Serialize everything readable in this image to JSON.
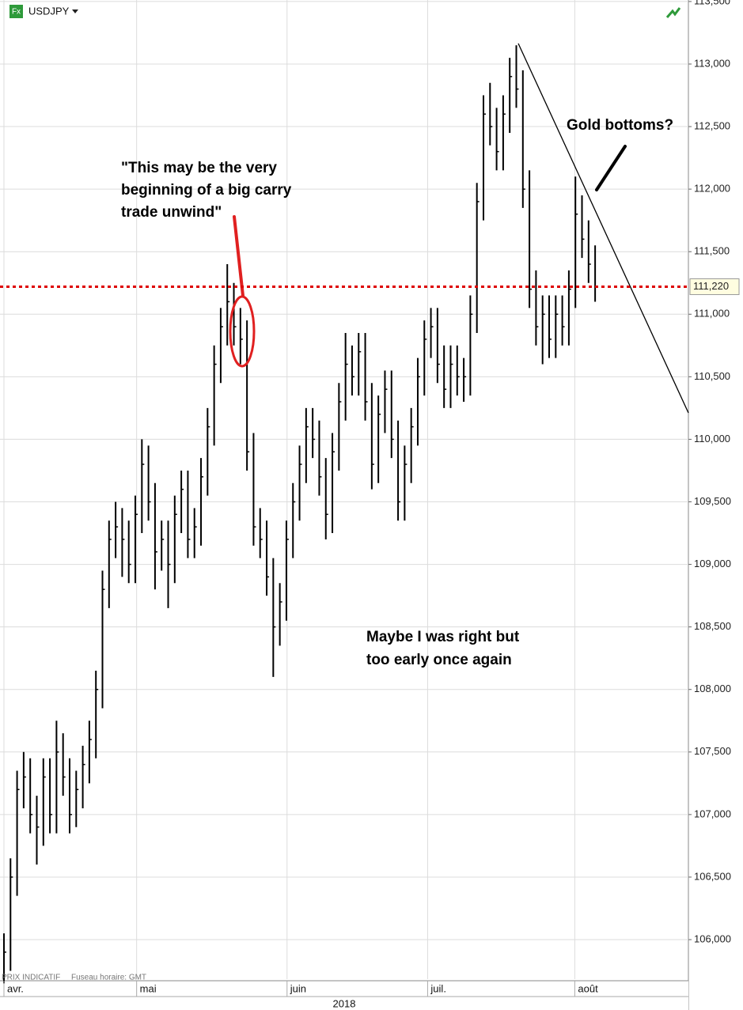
{
  "header": {
    "icon": "Fx",
    "symbol": "USDJPY"
  },
  "chart_data": {
    "type": "hlc",
    "x": [
      0,
      1,
      2,
      3,
      4,
      5,
      6,
      7,
      8,
      9,
      10,
      11,
      12,
      13,
      14,
      15,
      16,
      17,
      18,
      19,
      20,
      21,
      22,
      23,
      24,
      25,
      26,
      27,
      28,
      29,
      30,
      31,
      32,
      33,
      34,
      35,
      36,
      37,
      38,
      39,
      40,
      41,
      42,
      43,
      44,
      45,
      46,
      47,
      48,
      49,
      50,
      51,
      52,
      53,
      54,
      55,
      56,
      57,
      58,
      59,
      60,
      61,
      62,
      63,
      64,
      65,
      66,
      67,
      68,
      69,
      70,
      71,
      72,
      73,
      74,
      75,
      76,
      77,
      78,
      79,
      80,
      81,
      82,
      83,
      84,
      85,
      86,
      87,
      88,
      89,
      90
    ],
    "high": [
      106.05,
      106.65,
      107.35,
      107.5,
      107.45,
      107.15,
      107.45,
      107.45,
      107.75,
      107.65,
      107.45,
      107.35,
      107.55,
      107.75,
      108.15,
      108.95,
      109.35,
      109.5,
      109.45,
      109.35,
      109.55,
      110.0,
      109.95,
      109.65,
      109.35,
      109.35,
      109.55,
      109.75,
      109.75,
      109.45,
      109.85,
      110.25,
      110.75,
      111.05,
      111.4,
      111.25,
      111.05,
      110.95,
      110.05,
      109.45,
      109.35,
      109.05,
      108.85,
      109.35,
      109.65,
      109.95,
      110.25,
      110.25,
      110.15,
      109.85,
      110.05,
      110.45,
      110.85,
      110.75,
      110.85,
      110.85,
      110.45,
      110.35,
      110.55,
      110.55,
      110.15,
      109.95,
      110.25,
      110.65,
      110.95,
      111.05,
      111.05,
      110.75,
      110.75,
      110.75,
      110.65,
      111.15,
      112.05,
      112.75,
      112.85,
      112.65,
      112.75,
      113.05,
      113.15,
      112.95,
      112.15,
      111.35,
      111.15,
      111.15,
      111.15,
      111.15,
      111.35,
      112.1,
      111.95,
      111.75,
      111.55
    ],
    "low": [
      105.65,
      105.75,
      106.35,
      107.05,
      106.85,
      106.6,
      106.75,
      106.85,
      106.85,
      107.15,
      106.85,
      106.9,
      107.05,
      107.25,
      107.45,
      107.85,
      108.65,
      109.05,
      108.9,
      108.85,
      108.85,
      109.25,
      109.35,
      108.8,
      108.95,
      108.65,
      108.85,
      109.25,
      109.05,
      109.05,
      109.15,
      109.55,
      109.95,
      110.45,
      110.75,
      110.75,
      110.6,
      109.75,
      109.15,
      109.05,
      108.75,
      108.1,
      108.35,
      108.55,
      109.05,
      109.35,
      109.65,
      109.85,
      109.55,
      109.2,
      109.25,
      109.75,
      110.15,
      110.35,
      110.35,
      110.15,
      109.6,
      109.65,
      110.05,
      109.85,
      109.35,
      109.35,
      109.65,
      109.95,
      110.35,
      110.65,
      110.45,
      110.25,
      110.25,
      110.35,
      110.3,
      110.35,
      110.85,
      111.75,
      112.35,
      112.15,
      112.15,
      112.45,
      112.65,
      111.85,
      111.05,
      110.75,
      110.6,
      110.65,
      110.65,
      110.75,
      110.75,
      111.05,
      111.45,
      111.25,
      111.1
    ],
    "close": [
      105.9,
      106.5,
      107.2,
      107.3,
      107.0,
      106.9,
      107.3,
      107.0,
      107.5,
      107.3,
      107.0,
      107.2,
      107.4,
      107.6,
      108.0,
      108.8,
      109.2,
      109.3,
      109.2,
      109.0,
      109.4,
      109.8,
      109.5,
      109.1,
      109.2,
      109.0,
      109.4,
      109.6,
      109.2,
      109.3,
      109.7,
      110.1,
      110.6,
      110.9,
      111.1,
      110.9,
      110.8,
      109.9,
      109.3,
      109.2,
      108.9,
      108.5,
      108.7,
      109.2,
      109.5,
      109.8,
      110.1,
      110.0,
      109.7,
      109.4,
      109.9,
      110.3,
      110.6,
      110.5,
      110.7,
      110.3,
      109.8,
      110.2,
      110.4,
      110.0,
      109.5,
      109.8,
      110.1,
      110.5,
      110.8,
      110.9,
      110.6,
      110.4,
      110.6,
      110.5,
      110.5,
      111.0,
      111.9,
      112.6,
      112.5,
      112.3,
      112.6,
      112.9,
      112.8,
      112.0,
      111.2,
      110.9,
      111.0,
      110.8,
      111.0,
      110.9,
      111.2,
      111.8,
      111.6,
      111.4,
      111.22
    ],
    "color": "#000000",
    "xlim": [
      -0.6,
      104.2
    ],
    "xticks": [
      {
        "value": 0,
        "label": "avr."
      },
      {
        "value": 20.2,
        "label": "mai"
      },
      {
        "value": 43.1,
        "label": "juin"
      },
      {
        "value": 64.5,
        "label": "juil."
      },
      {
        "value": 86.9,
        "label": "août"
      }
    ],
    "xlabel": "2018",
    "ylim": [
      105.684,
      113.512
    ],
    "yticks": [
      {
        "value": 106,
        "label": "106,000"
      },
      {
        "value": 106.5,
        "label": "106,500"
      },
      {
        "value": 107,
        "label": "107,000"
      },
      {
        "value": 107.5,
        "label": "107,500"
      },
      {
        "value": 108,
        "label": "108,000"
      },
      {
        "value": 108.5,
        "label": "108,500"
      },
      {
        "value": 109,
        "label": "109,000"
      },
      {
        "value": 109.5,
        "label": "109,500"
      },
      {
        "value": 110,
        "label": "110,000"
      },
      {
        "value": 110.5,
        "label": "110,500"
      },
      {
        "value": 111,
        "label": "111,000"
      },
      {
        "value": 111.5,
        "label": "111,500"
      },
      {
        "value": 112,
        "label": "112,000"
      },
      {
        "value": 112.5,
        "label": "112,500"
      },
      {
        "value": 113,
        "label": "113,000"
      },
      {
        "value": 113.5,
        "label": "113,500"
      }
    ],
    "grid": true,
    "last_price": {
      "value": 111.22,
      "label": "111,220",
      "color": "#dd0000"
    },
    "annotations": [
      {
        "lines": [
          "\"This may be the very",
          "beginning of a big carry",
          "trade unwind\""
        ]
      },
      {
        "lines": [
          "Gold bottoms?"
        ]
      },
      {
        "lines": [
          "Maybe I was right but",
          "too early once again"
        ]
      }
    ],
    "footer": [
      "PRIX INDICATIF",
      "Fuseau horaire: GMT"
    ]
  }
}
